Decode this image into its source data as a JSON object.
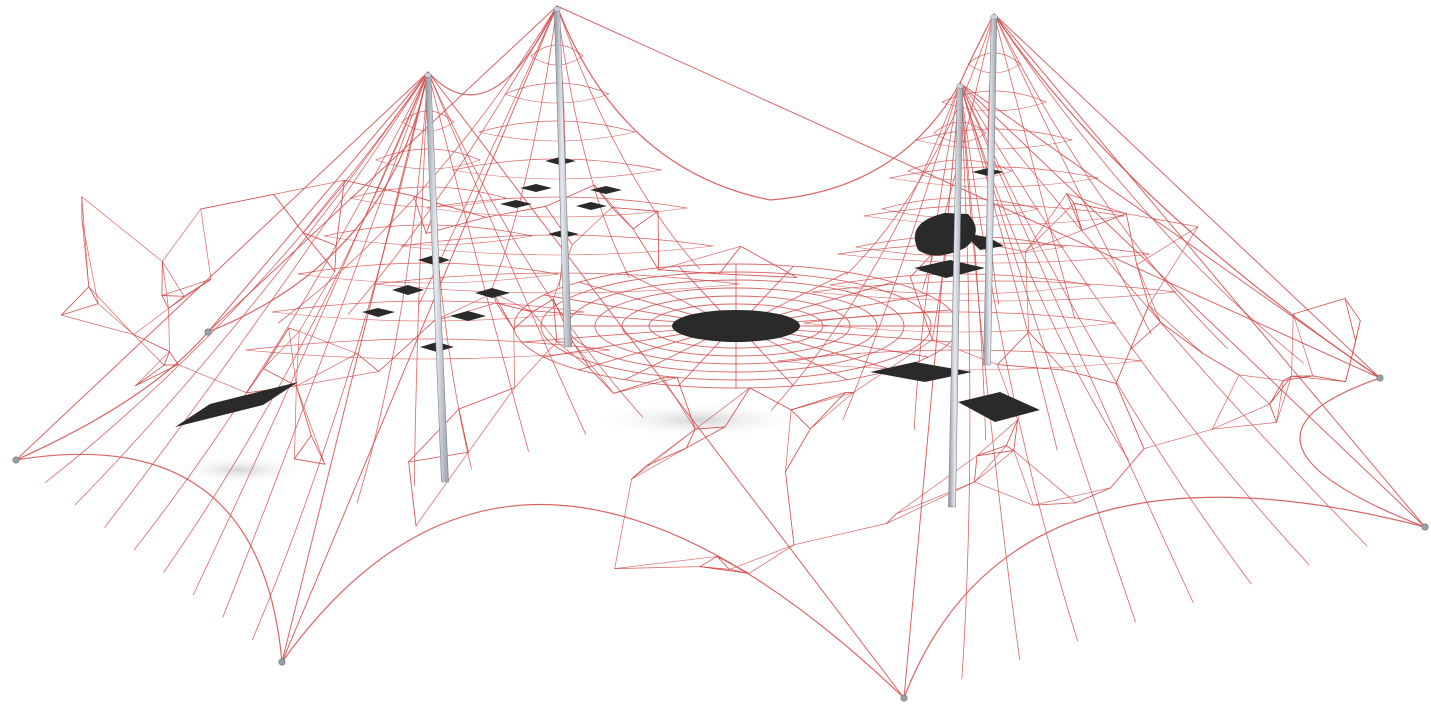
{
  "scene": {
    "subject": "rope-net-play-structure",
    "background_color": "#ffffff",
    "rope_color": "#d24a4a",
    "mast_color": "#b7bcc4",
    "pad_color": "#2a2a2a",
    "shadow_color": "#d9d9d9",
    "mast_count": 4,
    "anchor_count": 6,
    "pad_count": 20
  }
}
